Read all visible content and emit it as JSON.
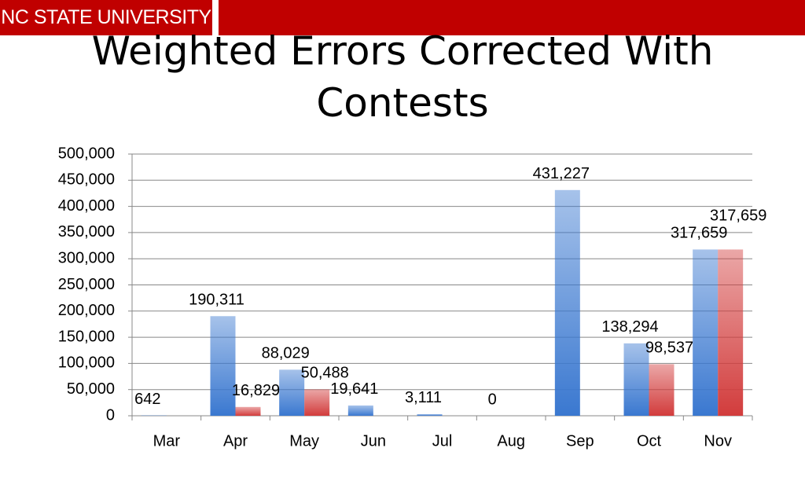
{
  "header": "NC STATE UNIVERSITY",
  "chart_data": {
    "type": "bar",
    "title": "Weighted Errors Corrected With Contests",
    "categories": [
      "Mar",
      "Apr",
      "May",
      "Jun",
      "Jul",
      "Aug",
      "Sep",
      "Oct",
      "Nov"
    ],
    "series": [
      {
        "color": "#3a78d0",
        "values": [
          642,
          190311,
          88029,
          19641,
          3111,
          0,
          431227,
          138294,
          317659
        ],
        "value_labels": [
          "642",
          "190,311",
          "88,029",
          "19,641",
          "3,111",
          "0",
          "431,227",
          "138,294",
          "317,659"
        ]
      },
      {
        "color": "#d23c3c",
        "values": [
          null,
          16829,
          50488,
          null,
          null,
          null,
          null,
          98537,
          317659
        ],
        "value_labels": [
          null,
          "16,829",
          "50,488",
          null,
          null,
          null,
          null,
          "98,537",
          "317,659"
        ]
      }
    ],
    "ylim": [
      0,
      500000
    ],
    "yticks": [
      0,
      {
        "value": 50000,
        "label": "50,000"
      },
      {
        "value": 100000,
        "label": "100,000"
      },
      {
        "value": 150000,
        "label": "150,000"
      },
      {
        "value": 200000,
        "label": "200,000"
      },
      {
        "value": 250000,
        "label": "250,000"
      },
      {
        "value": 300000,
        "label": "300,000"
      },
      {
        "value": 350000,
        "label": "350,000"
      },
      {
        "value": 400000,
        "label": "400,000"
      },
      {
        "value": 450000,
        "label": "450,000"
      },
      {
        "value": 500000,
        "label": "500,000"
      }
    ],
    "grid": true
  }
}
